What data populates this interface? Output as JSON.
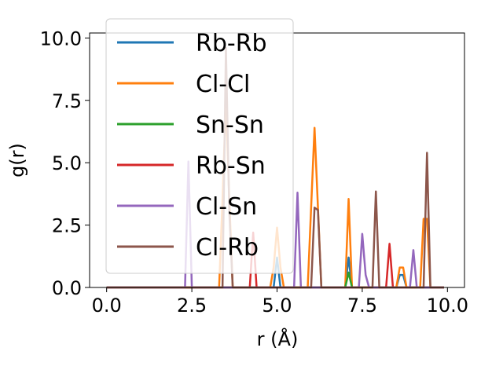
{
  "chart_data": {
    "type": "line",
    "xlabel": "r (Å)",
    "ylabel": "g(r)",
    "xlim": [
      -0.5,
      10.5
    ],
    "ylim": [
      0,
      10.2
    ],
    "xticks": [
      "0.0",
      "2.5",
      "5.0",
      "7.5",
      "10.0"
    ],
    "yticks": [
      "0.0",
      "2.5",
      "5.0",
      "7.5",
      "10.0"
    ],
    "legend_position": "upper-left",
    "grid": false,
    "series": [
      {
        "name": "Rb-Rb",
        "color": "#1f77b4",
        "x": [
          0.0,
          4.8,
          4.9,
          5.0,
          5.1,
          5.2,
          7.0,
          7.1,
          7.2,
          8.5,
          8.6,
          8.7,
          8.8,
          9.9
        ],
        "y": [
          0,
          0,
          0,
          1.2,
          0,
          0,
          0,
          1.2,
          0,
          0,
          0.5,
          0.5,
          0,
          0
        ]
      },
      {
        "name": "Cl-Cl",
        "color": "#ff7f0e",
        "x": [
          0.0,
          3.3,
          3.4,
          3.5,
          3.6,
          3.7,
          3.8,
          4.8,
          4.9,
          5.0,
          5.1,
          5.2,
          5.9,
          6.0,
          6.1,
          6.2,
          6.3,
          7.0,
          7.1,
          7.2,
          8.5,
          8.6,
          8.7,
          8.8,
          9.2,
          9.3,
          9.4,
          9.5,
          9.9
        ],
        "y": [
          0,
          0,
          3.5,
          7.5,
          3.5,
          0,
          0,
          0,
          0.8,
          2.4,
          0.8,
          0,
          0,
          3.2,
          6.4,
          3.2,
          0,
          0,
          3.55,
          0,
          0,
          0.8,
          0.8,
          0,
          0,
          2.75,
          2.75,
          0,
          0
        ]
      },
      {
        "name": "Sn-Sn",
        "color": "#2ca02c",
        "x": [
          0.0,
          7.0,
          7.1,
          7.2,
          9.9
        ],
        "y": [
          0,
          0,
          0.6,
          0,
          0
        ]
      },
      {
        "name": "Rb-Sn",
        "color": "#d62728",
        "x": [
          0.0,
          4.2,
          4.3,
          4.4,
          8.2,
          8.3,
          8.4,
          9.9
        ],
        "y": [
          0,
          0,
          2.2,
          0,
          0,
          1.75,
          0,
          0
        ]
      },
      {
        "name": "Cl-Sn",
        "color": "#9467bd",
        "x": [
          0.0,
          2.3,
          2.4,
          2.5,
          5.5,
          5.6,
          5.7,
          7.4,
          7.5,
          7.6,
          7.7,
          8.9,
          9.0,
          9.1,
          9.9
        ],
        "y": [
          0,
          0,
          5.05,
          0,
          0,
          3.8,
          0,
          0,
          2.15,
          0.5,
          0,
          0,
          1.5,
          0,
          0
        ]
      },
      {
        "name": "Cl-Rb",
        "color": "#8c564b",
        "x": [
          0.0,
          3.4,
          3.5,
          3.6,
          3.7,
          6.0,
          6.1,
          6.2,
          6.3,
          7.8,
          7.9,
          8.0,
          9.3,
          9.4,
          9.5,
          9.9
        ],
        "y": [
          0,
          0,
          9.6,
          3.0,
          0,
          0,
          3.2,
          3.1,
          0,
          0,
          3.85,
          0,
          0,
          5.4,
          0,
          0
        ]
      }
    ]
  }
}
